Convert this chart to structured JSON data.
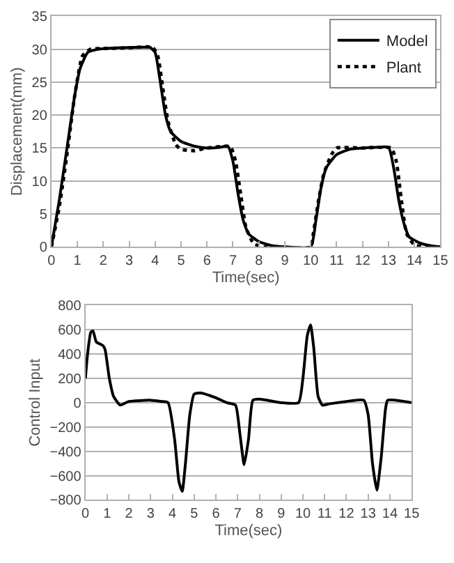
{
  "chart_data": [
    {
      "type": "line",
      "xlabel": "Time(sec)",
      "ylabel": "Displacement(mm)",
      "xlim": [
        0,
        15
      ],
      "xticks": [
        0,
        1,
        2,
        3,
        4,
        5,
        6,
        7,
        8,
        9,
        10,
        11,
        12,
        13,
        14,
        15
      ],
      "ylim": [
        0,
        35
      ],
      "yticks": [
        0,
        5,
        10,
        15,
        20,
        25,
        30,
        35
      ],
      "grid": "y",
      "legend": "top right",
      "series": [
        {
          "name": "Model",
          "color": "#000000",
          "line_style": "solid",
          "x": [
            0,
            0.3,
            0.6,
            0.9,
            1.1,
            1.4,
            1.8,
            2.5,
            3.5,
            3.8,
            4.0,
            4.2,
            4.4,
            4.6,
            5.0,
            5.5,
            6.0,
            6.5,
            6.8,
            7.0,
            7.2,
            7.4,
            7.6,
            8.0,
            8.5,
            9,
            10,
            10.2,
            10.4,
            10.6,
            11,
            11.5,
            12,
            12.5,
            13,
            13.2,
            13.4,
            13.6,
            13.8,
            14.2,
            14.6,
            15
          ],
          "values": [
            0,
            7,
            15,
            23,
            27,
            29.5,
            30,
            30.2,
            30.3,
            30.3,
            29.5,
            25,
            20,
            17.5,
            16,
            15.3,
            15,
            15.1,
            15.3,
            13,
            8,
            4,
            2,
            0.8,
            0.2,
            0,
            0,
            4,
            9,
            12,
            14,
            14.8,
            15,
            15.1,
            15.1,
            12,
            7,
            3.5,
            1.5,
            0.6,
            0.2,
            0
          ]
        },
        {
          "name": "Plant",
          "color": "#000000",
          "line_style": "dotted",
          "x": [
            0,
            0.3,
            0.6,
            0.9,
            1.2,
            1.5,
            2,
            3,
            3.9,
            4.1,
            4.3,
            4.5,
            4.8,
            5.0,
            5.5,
            6.0,
            6.9,
            7.1,
            7.3,
            7.5,
            7.8,
            8.2,
            10,
            10.1,
            10.3,
            10.5,
            10.8,
            11,
            12,
            13.1,
            13.3,
            13.5,
            13.7,
            14,
            14.5,
            15
          ],
          "values": [
            0,
            6,
            14,
            23,
            29,
            30,
            30.1,
            30.2,
            30.3,
            29,
            24,
            19,
            15.5,
            14.8,
            14.6,
            15,
            15.2,
            13,
            8,
            3,
            0.5,
            0,
            0,
            2,
            7,
            11,
            14,
            15,
            15,
            15,
            13,
            7,
            2,
            0.3,
            0,
            0
          ]
        }
      ]
    },
    {
      "type": "line",
      "xlabel": "Time(sec)",
      "ylabel": "Control Input",
      "xlim": [
        0,
        15
      ],
      "xticks": [
        0,
        1,
        2,
        3,
        4,
        5,
        6,
        7,
        8,
        9,
        10,
        11,
        12,
        13,
        14,
        15
      ],
      "ylim": [
        -800,
        800
      ],
      "yticks": [
        -800,
        -600,
        -400,
        -200,
        0,
        200,
        400,
        600,
        800
      ],
      "grid": "y",
      "legend": false,
      "series": [
        {
          "color": "#000000",
          "line_style": "solid",
          "x": [
            0,
            0.1,
            0.25,
            0.35,
            0.5,
            0.8,
            0.9,
            1.1,
            1.3,
            1.6,
            2,
            3,
            3.5,
            3.8,
            4.1,
            4.3,
            4.45,
            4.6,
            4.8,
            5,
            5.3,
            6,
            6.5,
            6.9,
            7.1,
            7.3,
            7.5,
            7.7,
            8,
            9,
            9.8,
            10,
            10.2,
            10.35,
            10.5,
            10.7,
            10.9,
            11.2,
            12,
            12.8,
            13,
            13.2,
            13.4,
            13.6,
            13.8,
            13.9,
            15
          ],
          "values": [
            200,
            400,
            580,
            590,
            500,
            470,
            440,
            200,
            50,
            -20,
            10,
            20,
            10,
            0,
            -300,
            -650,
            -730,
            -500,
            -100,
            70,
            80,
            40,
            0,
            -20,
            -250,
            -510,
            -300,
            20,
            30,
            0,
            0,
            200,
            550,
            640,
            450,
            50,
            -20,
            -10,
            10,
            20,
            -100,
            -500,
            -720,
            -450,
            -50,
            20,
            0
          ]
        }
      ]
    }
  ]
}
